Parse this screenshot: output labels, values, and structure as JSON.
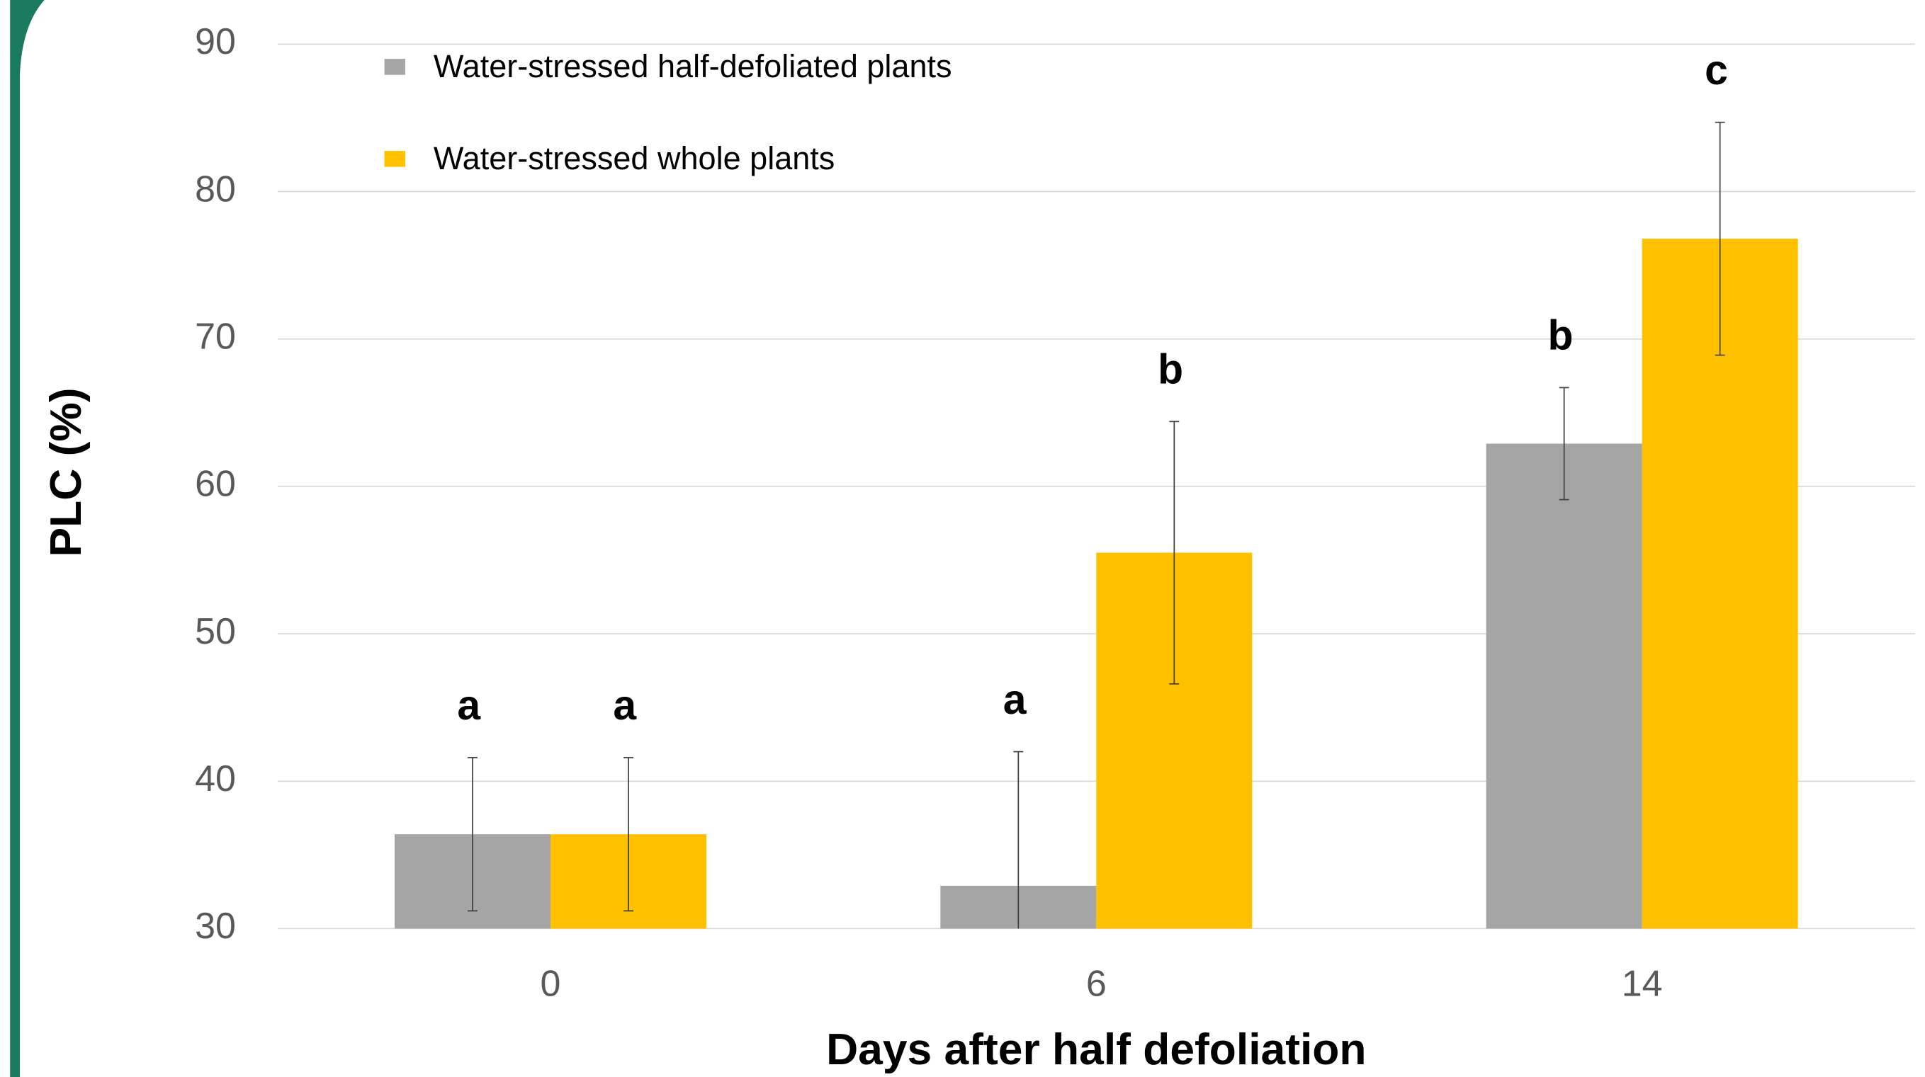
{
  "chart_data": {
    "type": "bar",
    "x_label": "Days after half defoliation",
    "y_label": "PLC (%)",
    "categories": [
      "0",
      "6",
      "14"
    ],
    "series": [
      {
        "name": "Water-stressed half-defoliated plants",
        "color": "#a5a5a5",
        "values": [
          36.4,
          32.9,
          62.9
        ],
        "errors": [
          5.2,
          9.1,
          3.8
        ],
        "letters": [
          "a",
          "a",
          "b"
        ]
      },
      {
        "name": "Water-stressed whole plants",
        "color": "#ffc000",
        "values": [
          36.4,
          55.5,
          76.8
        ],
        "errors": [
          5.2,
          8.9,
          7.9
        ],
        "letters": [
          "a",
          "b",
          "c"
        ]
      }
    ],
    "ylim": [
      30,
      90
    ],
    "yticks": [
      30,
      40,
      50,
      60,
      70,
      80,
      90
    ],
    "grid": true
  }
}
